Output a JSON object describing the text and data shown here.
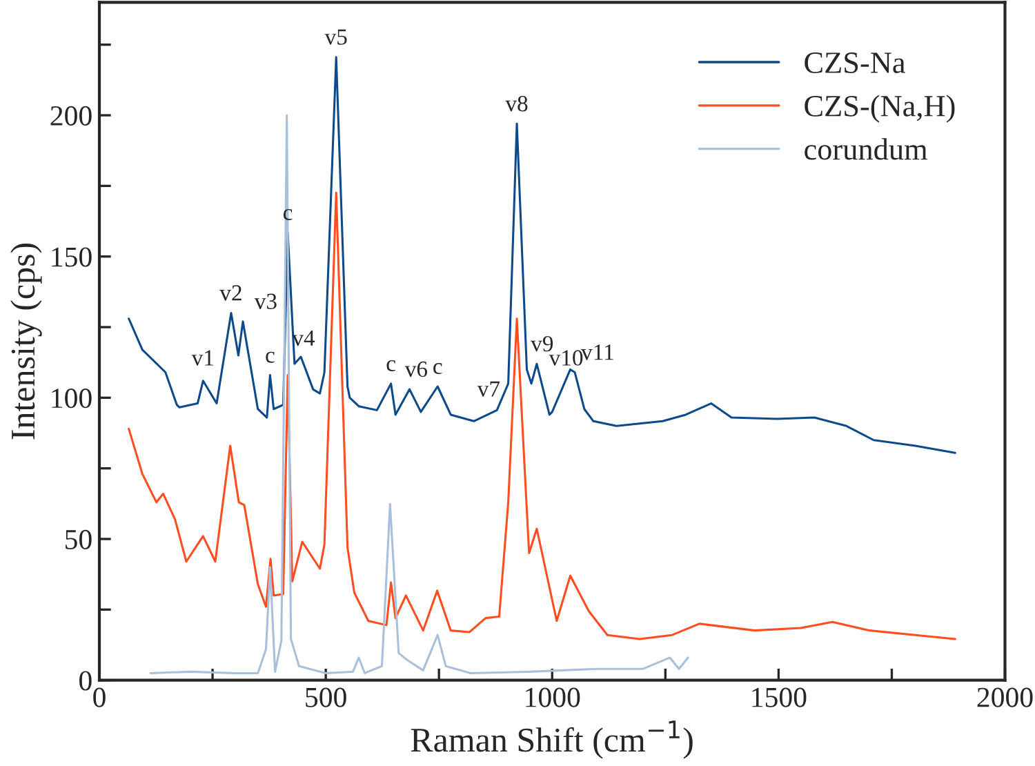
{
  "chart_data": {
    "type": "line",
    "xlabel": "Raman Shift (cm$^{−1}$)",
    "ylabel": "Intensity (cps)",
    "xlim": [
      0,
      2000
    ],
    "ylim": [
      0,
      240
    ],
    "xticks": [
      0,
      {
        "value": 250,
        "label": null
      },
      500,
      {
        "value": 750,
        "label": null
      },
      1000,
      {
        "value": 1250,
        "label": null
      },
      1500,
      {
        "value": 1750,
        "label": null
      },
      2000
    ],
    "yticks": [
      0,
      {
        "value": 25,
        "label": null
      },
      50,
      {
        "value": 75,
        "label": null
      },
      100,
      {
        "value": 125,
        "label": null
      },
      150,
      {
        "value": 175,
        "label": null
      },
      200,
      {
        "value": 225,
        "label": null
      }
    ],
    "grid": false,
    "legend": "top right",
    "line_style": "solid",
    "series": [
      {
        "name": "CZS-Na",
        "color": "#0d4a8c",
        "x": [
          65,
          95,
          146,
          171,
          177,
          217,
          229,
          259,
          291,
          307,
          317,
          350,
          370,
          377,
          385,
          406,
          416,
          431,
          445,
          472,
          487,
          497,
          523,
          548,
          553,
          573,
          613,
          644,
          654,
          685,
          710,
          747,
          776,
          827,
          878,
          903,
          922,
          944,
          954,
          966,
          994,
          1000,
          1040,
          1050,
          1071,
          1091,
          1142,
          1244,
          1295,
          1351,
          1396,
          1497,
          1579,
          1650,
          1710,
          1802,
          1890
        ],
        "values": [
          128,
          117,
          109,
          97.5,
          96.6,
          98,
          106,
          98,
          130,
          115,
          127,
          96,
          93,
          108,
          96,
          97.5,
          158.5,
          112,
          114.5,
          103,
          101.5,
          109,
          220.6,
          104,
          100,
          97,
          95.6,
          105,
          94,
          103,
          95,
          104,
          94,
          91.7,
          95.6,
          105,
          197,
          110,
          105,
          112,
          94,
          95,
          110,
          109,
          96,
          91.7,
          90,
          91.7,
          94,
          98,
          93,
          92.5,
          93,
          90,
          85,
          83,
          80.5
        ]
      },
      {
        "name": "CZS-(Na,H)",
        "color": "#ff4d1f",
        "x": [
          65,
          95,
          126,
          141,
          167,
          192,
          229,
          256,
          289,
          308,
          320,
          350,
          368,
          378,
          385,
          406,
          416,
          426,
          448,
          487,
          497,
          523,
          548,
          563,
          594,
          634,
          644,
          654,
          677,
          715,
          746,
          776,
          817,
          853,
          883,
          903,
          922,
          949,
          966,
          1010,
          1040,
          1081,
          1122,
          1193,
          1265,
          1325,
          1447,
          1549,
          1619,
          1701,
          1802,
          1890
        ],
        "values": [
          89,
          73,
          63,
          66,
          57,
          42,
          51,
          42,
          83,
          63,
          62,
          34,
          26,
          43,
          30,
          30.5,
          108,
          35,
          49,
          39.5,
          48,
          172.6,
          47,
          31,
          21,
          19.5,
          34.6,
          22,
          30,
          17.6,
          31.7,
          17.6,
          17,
          22,
          22.5,
          63,
          128,
          45,
          53.6,
          21,
          37,
          24.4,
          16,
          14.6,
          16,
          20,
          17.6,
          18.5,
          20.6,
          17.6,
          16,
          14.6
        ]
      },
      {
        "name": "corundum",
        "color": "#a8c0dc",
        "x": [
          113,
          200,
          300,
          350,
          368,
          377,
          388,
          402,
          414,
          423,
          441,
          500,
          560,
          573,
          586,
          624,
          642,
          661,
          681,
          715,
          747,
          765,
          820,
          950,
          1100,
          1200,
          1260,
          1280,
          1300
        ],
        "values": [
          2.5,
          3,
          2.5,
          2.5,
          11,
          40,
          3,
          14,
          200,
          14.6,
          5,
          2.5,
          3,
          8,
          2.5,
          5,
          62.4,
          9.6,
          7,
          3.5,
          16,
          5,
          2.5,
          3,
          4,
          4,
          8,
          4,
          8
        ]
      }
    ],
    "annotations": [
      {
        "text": "v1",
        "x": 229,
        "y": 107
      },
      {
        "text": "v2",
        "x": 291,
        "y": 130
      },
      {
        "text": "v3",
        "x": 317,
        "y": 127
      },
      {
        "text": "c",
        "x": 377,
        "y": 108
      },
      {
        "text": "c",
        "x": 416,
        "y": 158.5
      },
      {
        "text": "v4",
        "x": 451,
        "y": 114
      },
      {
        "text": "v5",
        "x": 523,
        "y": 220.6
      },
      {
        "text": "c",
        "x": 644,
        "y": 105
      },
      {
        "text": "v6",
        "x": 700,
        "y": 103
      },
      {
        "text": "c",
        "x": 747,
        "y": 104
      },
      {
        "text": "v7",
        "x": 860,
        "y": 96
      },
      {
        "text": "v8",
        "x": 922,
        "y": 197
      },
      {
        "text": "v9",
        "x": 978,
        "y": 112
      },
      {
        "text": "v10",
        "x": 1031,
        "y": 107
      },
      {
        "text": "v11",
        "x": 1050,
        "y": 109
      }
    ]
  }
}
